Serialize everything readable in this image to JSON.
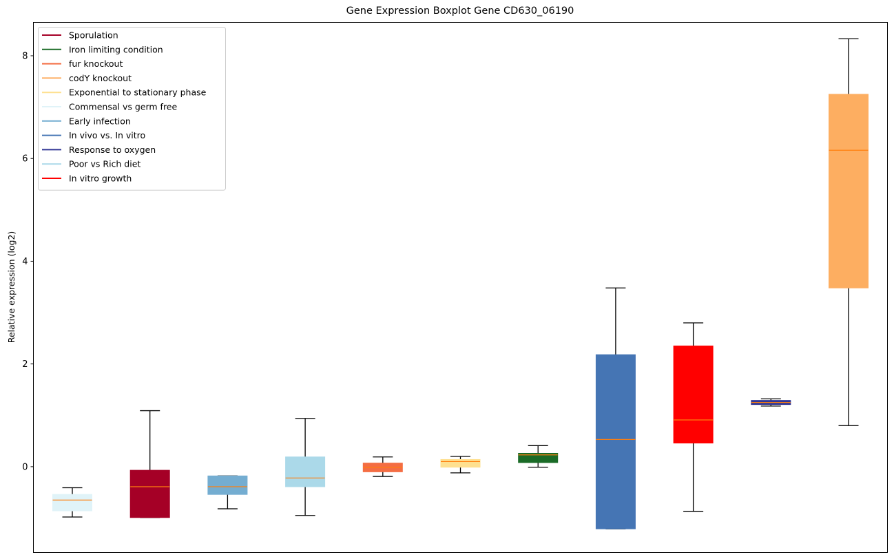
{
  "chart_data": {
    "type": "boxplot",
    "title": "Gene Expression Boxplot Gene CD630_06190",
    "xlabel": "",
    "ylabel": "Relative expression (log2)",
    "ylim": [
      -1.67,
      8.65
    ],
    "yticks": [
      0,
      2,
      4,
      6,
      8
    ],
    "ytick_labels": [
      "0",
      "2",
      "4",
      "6",
      "8"
    ],
    "grid": false,
    "legend_position": "top-left",
    "median_color": "#ff7f0e",
    "legend": [
      {
        "label": "Sporulation",
        "color": "#a50026"
      },
      {
        "label": "Iron limiting condition",
        "color": "#1a6b27"
      },
      {
        "label": "fur knockout",
        "color": "#f46d43"
      },
      {
        "label": "codY knockout",
        "color": "#fdae61"
      },
      {
        "label": "Exponential to stationary phase",
        "color": "#fee090"
      },
      {
        "label": "Commensal vs germ free",
        "color": "#e0f3f8"
      },
      {
        "label": "Early infection",
        "color": "#74add1"
      },
      {
        "label": "In vivo vs. In vitro",
        "color": "#4575b4"
      },
      {
        "label": "Response to oxygen",
        "color": "#313695"
      },
      {
        "label": "Poor vs Rich diet",
        "color": "#abd9e9"
      },
      {
        "label": "In vitro growth",
        "color": "#ff0000"
      }
    ],
    "boxes": [
      {
        "condition": "Commensal vs germ free",
        "color": "#e0f3f8",
        "whisker_low": -0.98,
        "q1": -0.86,
        "median": -0.65,
        "q3": -0.54,
        "whisker_high": -0.41
      },
      {
        "condition": "Sporulation",
        "color": "#a50026",
        "whisker_low": -0.99,
        "q1": -0.99,
        "median": -0.39,
        "q3": -0.07,
        "whisker_high": 1.09
      },
      {
        "condition": "Early infection",
        "color": "#74add1",
        "whisker_low": -0.82,
        "q1": -0.54,
        "median": -0.39,
        "q3": -0.18,
        "whisker_high": -0.18
      },
      {
        "condition": "Poor vs Rich diet",
        "color": "#abd9e9",
        "whisker_low": -0.95,
        "q1": -0.39,
        "median": -0.22,
        "q3": 0.19,
        "whisker_high": 0.94
      },
      {
        "condition": "fur knockout",
        "color": "#f46d43",
        "whisker_low": -0.19,
        "q1": -0.1,
        "median": -0.01,
        "q3": 0.07,
        "whisker_high": 0.19
      },
      {
        "condition": "Exponential to stationary phase",
        "color": "#fee090",
        "whisker_low": -0.12,
        "q1": -0.01,
        "median": 0.1,
        "q3": 0.14,
        "whisker_high": 0.2
      },
      {
        "condition": "Iron limiting condition",
        "color": "#1a6b27",
        "whisker_low": -0.01,
        "q1": 0.08,
        "median": 0.23,
        "q3": 0.26,
        "whisker_high": 0.41
      },
      {
        "condition": "In vivo vs. In vitro",
        "color": "#4575b4",
        "whisker_low": -1.21,
        "q1": -1.21,
        "median": 0.53,
        "q3": 2.18,
        "whisker_high": 3.48
      },
      {
        "condition": "In vitro growth",
        "color": "#ff0000",
        "whisker_low": -0.87,
        "q1": 0.46,
        "median": 0.91,
        "q3": 2.35,
        "whisker_high": 2.8
      },
      {
        "condition": "Response to oxygen",
        "color": "#313695",
        "whisker_low": 1.18,
        "q1": 1.21,
        "median": 1.25,
        "q3": 1.29,
        "whisker_high": 1.32
      },
      {
        "condition": "codY knockout",
        "color": "#fdae61",
        "whisker_low": 0.8,
        "q1": 3.48,
        "median": 6.16,
        "q3": 7.25,
        "whisker_high": 8.33
      }
    ]
  }
}
